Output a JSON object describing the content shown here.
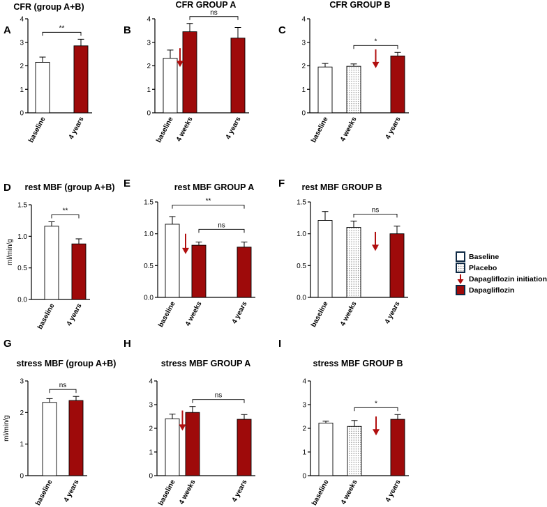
{
  "colors": {
    "baseline_fill": "#ffffff",
    "dapagliflozin_fill": "#9e0a0a",
    "arrow": "#b10f0f",
    "legend_box_stroke": "#0f2a45",
    "axis": "#000000"
  },
  "legend": {
    "items": [
      {
        "label": "Baseline",
        "icon": "baseline-box-icon"
      },
      {
        "label": "Placebo",
        "icon": "placebo-box-icon"
      },
      {
        "label": "Dapagliflozin initiation",
        "icon": "down-arrow-icon"
      },
      {
        "label": "Dapagliflozin",
        "icon": "dapagliflozin-box-icon"
      }
    ]
  },
  "chart_data": [
    {
      "id": "A",
      "letter": "A",
      "type": "bar",
      "title": "CFR (group A+B)",
      "ylabel": "",
      "ylim": [
        0,
        4
      ],
      "ticks": [
        "0",
        "1",
        "2",
        "3",
        "4"
      ],
      "categories": [
        "baseline",
        "4 years"
      ],
      "bars": [
        {
          "category": "baseline",
          "value": 2.15,
          "error": 0.22,
          "fill": "baseline"
        },
        {
          "category": "4 years",
          "value": 2.85,
          "error": 0.28,
          "fill": "dapagliflozin"
        }
      ],
      "arrows": [],
      "significance": [
        {
          "from": "baseline",
          "to": "4 years",
          "label": "**"
        }
      ]
    },
    {
      "id": "B",
      "letter": "B",
      "type": "bar",
      "title": "CFR GROUP A",
      "ylabel": "",
      "ylim": [
        0,
        4
      ],
      "ticks": [
        "0",
        "1",
        "2",
        "3",
        "4"
      ],
      "categories": [
        "baseline",
        "4 weeks",
        "4 years"
      ],
      "bars": [
        {
          "category": "baseline",
          "value": 2.32,
          "error": 0.35,
          "fill": "baseline"
        },
        {
          "category": "4 weeks",
          "value": 3.45,
          "error": 0.35,
          "fill": "dapagliflozin"
        },
        {
          "category": "4 years",
          "value": 3.18,
          "error": 0.45,
          "fill": "dapagliflozin"
        }
      ],
      "arrows": [
        {
          "between": [
            "baseline",
            "4 weeks"
          ],
          "from": 2.75,
          "to": 1.95
        }
      ],
      "significance": [
        {
          "from": "4 weeks",
          "to": "4 years",
          "label": "ns"
        }
      ]
    },
    {
      "id": "C",
      "letter": "C",
      "type": "bar",
      "title": "CFR GROUP B",
      "ylabel": "",
      "ylim": [
        0,
        4
      ],
      "ticks": [
        "0",
        "1",
        "2",
        "3",
        "4"
      ],
      "categories": [
        "baseline",
        "4 weeks",
        "4 years"
      ],
      "bars": [
        {
          "category": "baseline",
          "value": 1.95,
          "error": 0.15,
          "fill": "baseline"
        },
        {
          "category": "4 weeks",
          "value": 1.98,
          "error": 0.1,
          "fill": "placebo"
        },
        {
          "category": "4 years",
          "value": 2.42,
          "error": 0.15,
          "fill": "dapagliflozin"
        }
      ],
      "arrows": [
        {
          "between": [
            "4 weeks",
            "4 years"
          ],
          "from": 2.7,
          "to": 1.9
        }
      ],
      "significance": [
        {
          "from": "4 weeks",
          "to": "4 years",
          "label": "*"
        }
      ]
    },
    {
      "id": "D",
      "letter": "D",
      "type": "bar",
      "title": "rest MBF (group A+B)",
      "ylabel": "ml/min/g",
      "ylim": [
        0,
        1.5
      ],
      "ticks": [
        "0.0",
        "0.5",
        "1.0",
        "1.5"
      ],
      "categories": [
        "baseline",
        "4 years"
      ],
      "bars": [
        {
          "category": "baseline",
          "value": 1.16,
          "error": 0.07,
          "fill": "baseline"
        },
        {
          "category": "4 years",
          "value": 0.88,
          "error": 0.08,
          "fill": "dapagliflozin"
        }
      ],
      "arrows": [],
      "significance": [
        {
          "from": "baseline",
          "to": "4 years",
          "label": "**"
        }
      ]
    },
    {
      "id": "E",
      "letter": "E",
      "type": "bar",
      "title": "rest MBF GROUP A",
      "ylabel": "",
      "ylim": [
        0,
        1.5
      ],
      "ticks": [
        "0.0",
        "0.5",
        "1.0",
        "1.5"
      ],
      "categories": [
        "baseline",
        "4 weeks",
        "4 years"
      ],
      "bars": [
        {
          "category": "baseline",
          "value": 1.15,
          "error": 0.12,
          "fill": "baseline"
        },
        {
          "category": "4 weeks",
          "value": 0.82,
          "error": 0.05,
          "fill": "dapagliflozin"
        },
        {
          "category": "4 years",
          "value": 0.79,
          "error": 0.08,
          "fill": "dapagliflozin"
        }
      ],
      "arrows": [
        {
          "between": [
            "baseline",
            "4 weeks"
          ],
          "from": 1.0,
          "to": 0.68
        }
      ],
      "significance": [
        {
          "from": "baseline",
          "to": "4 years",
          "label": "**",
          "level": 1.45
        },
        {
          "from": "4 weeks",
          "to": "4 years",
          "label": "ns",
          "level": 1.07
        }
      ]
    },
    {
      "id": "F",
      "letter": "F",
      "type": "bar",
      "title": "rest MBF GROUP B",
      "ylabel": "",
      "ylim": [
        0,
        1.5
      ],
      "ticks": [
        "0.0",
        "0.5",
        "1.0",
        "1.5"
      ],
      "categories": [
        "baseline",
        "4 weeks",
        "4 years"
      ],
      "bars": [
        {
          "category": "baseline",
          "value": 1.21,
          "error": 0.14,
          "fill": "baseline"
        },
        {
          "category": "4 weeks",
          "value": 1.1,
          "error": 0.1,
          "fill": "placebo"
        },
        {
          "category": "4 years",
          "value": 1.0,
          "error": 0.12,
          "fill": "dapagliflozin"
        }
      ],
      "arrows": [
        {
          "between": [
            "4 weeks",
            "4 years"
          ],
          "from": 1.03,
          "to": 0.73
        }
      ],
      "significance": [
        {
          "from": "4 weeks",
          "to": "4 years",
          "label": "ns"
        }
      ]
    },
    {
      "id": "G",
      "letter": "G",
      "type": "bar",
      "title": "stress MBF (group A+B)",
      "ylabel": "ml/min/g",
      "ylim": [
        0,
        3
      ],
      "ticks": [
        "0",
        "1",
        "2",
        "3"
      ],
      "categories": [
        "baseline",
        "4 years"
      ],
      "bars": [
        {
          "category": "baseline",
          "value": 2.32,
          "error": 0.12,
          "fill": "baseline"
        },
        {
          "category": "4 years",
          "value": 2.38,
          "error": 0.13,
          "fill": "dapagliflozin"
        }
      ],
      "arrows": [],
      "significance": [
        {
          "from": "baseline",
          "to": "4 years",
          "label": "ns"
        }
      ]
    },
    {
      "id": "H",
      "letter": "H",
      "type": "bar",
      "title": "stress MBF GROUP A",
      "ylabel": "",
      "ylim": [
        0,
        4
      ],
      "ticks": [
        "0",
        "1",
        "2",
        "3",
        "4"
      ],
      "categories": [
        "baseline",
        "4 weeks",
        "4 years"
      ],
      "bars": [
        {
          "category": "baseline",
          "value": 2.4,
          "error": 0.2,
          "fill": "baseline"
        },
        {
          "category": "4 weeks",
          "value": 2.67,
          "error": 0.25,
          "fill": "dapagliflozin"
        },
        {
          "category": "4 years",
          "value": 2.38,
          "error": 0.2,
          "fill": "dapagliflozin"
        }
      ],
      "arrows": [
        {
          "between": [
            "baseline",
            "4 weeks"
          ],
          "from": 2.75,
          "to": 1.9
        }
      ],
      "significance": [
        {
          "from": "4 weeks",
          "to": "4 years",
          "label": "ns"
        }
      ]
    },
    {
      "id": "I",
      "letter": "I",
      "type": "bar",
      "title": "stress MBF GROUP B",
      "ylabel": "",
      "ylim": [
        0,
        4
      ],
      "ticks": [
        "0",
        "1",
        "2",
        "3",
        "4"
      ],
      "categories": [
        "baseline",
        "4 weeks",
        "4 years"
      ],
      "bars": [
        {
          "category": "baseline",
          "value": 2.22,
          "error": 0.08,
          "fill": "baseline"
        },
        {
          "category": "4 weeks",
          "value": 2.08,
          "error": 0.25,
          "fill": "placebo"
        },
        {
          "category": "4 years",
          "value": 2.38,
          "error": 0.2,
          "fill": "dapagliflozin"
        }
      ],
      "arrows": [
        {
          "between": [
            "4 weeks",
            "4 years"
          ],
          "from": 2.5,
          "to": 1.7
        }
      ],
      "significance": [
        {
          "from": "4 weeks",
          "to": "4 years",
          "label": "*"
        }
      ]
    }
  ]
}
